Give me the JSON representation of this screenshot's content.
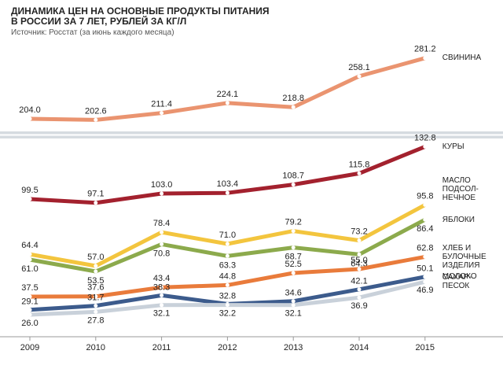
{
  "chart_data": {
    "type": "line",
    "title": "ДИНАМИКА ЦЕН НА ОСНОВНЫЕ ПРОДУКТЫ ПИТАНИЯ\nВ РОССИИ ЗА 7 ЛЕТ, РУБЛЕЙ ЗА КГ/Л",
    "subtitle": "Источник: Росстат (за июнь каждого месяца)",
    "categories": [
      "2009",
      "2010",
      "2011",
      "2012",
      "2013",
      "2014",
      "2015"
    ],
    "ylim": [
      15,
      140
    ],
    "y2lim": [
      195,
      290
    ],
    "series": [
      {
        "name": "СВИНИНА",
        "color": "#ea9470",
        "axis": "y2",
        "values": [
          204.0,
          202.6,
          211.4,
          224.1,
          218.8,
          258.1,
          281.2
        ],
        "value_labels": [
          "204.0",
          "202.6",
          "211.4",
          "224.1",
          "218.8",
          "258.1",
          "281.2"
        ]
      },
      {
        "name": "КУРЫ",
        "color": "#a3212e",
        "values": [
          99.5,
          97.1,
          103.0,
          103.4,
          108.7,
          115.8,
          132.8
        ],
        "value_labels": [
          "99.5",
          "97.1",
          "103.0",
          "103.4",
          "108.7",
          "115.8",
          "132.8"
        ]
      },
      {
        "name": "МАСЛО\nПОДСОЛ-\nНЕЧНОЕ",
        "color": "#f3c53e",
        "values": [
          64.4,
          57.0,
          78.4,
          71.0,
          79.2,
          73.2,
          95.8
        ],
        "value_labels": [
          "64.4",
          "57.0",
          "78.4",
          "71.0",
          "79.2",
          "73.2",
          "95.8"
        ]
      },
      {
        "name": "ЯБЛОКИ",
        "color": "#8caa4c",
        "values": [
          61.0,
          53.5,
          70.8,
          63.3,
          68.7,
          64.3,
          86.4
        ],
        "value_labels": [
          "61.0",
          "53.5",
          "70.8",
          "63.3",
          "68.7",
          "64.3",
          "86.4"
        ]
      },
      {
        "name": "ХЛЕБ И\nБУЛОЧНЫЕ\nИЗДЕЛИЯ",
        "color": "#e97b3b",
        "values": [
          37.5,
          37.6,
          43.4,
          44.8,
          52.5,
          55.0,
          62.8
        ],
        "value_labels": [
          "37.5",
          "37.6",
          "43.4",
          "44.8",
          "52.5",
          "55.0",
          "62.8"
        ]
      },
      {
        "name": "МОЛОКО",
        "color": "#3c5b8c",
        "values": [
          29.1,
          31.7,
          38.3,
          32.8,
          34.6,
          42.1,
          50.1
        ],
        "value_labels": [
          "29.1",
          "31.7",
          "38.3",
          "32.8",
          "34.6",
          "42.1",
          "50.1"
        ]
      },
      {
        "name": "САХАР-\nПЕСОК",
        "color": "#c9d1da",
        "values": [
          26.0,
          27.8,
          32.1,
          32.2,
          32.1,
          36.9,
          46.9
        ],
        "value_labels": [
          "26.0",
          "27.8",
          "32.1",
          "32.2",
          "32.1",
          "36.9",
          "46.9"
        ]
      }
    ]
  }
}
